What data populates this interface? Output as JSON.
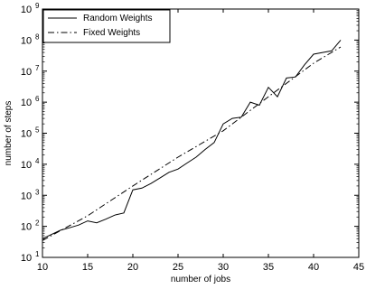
{
  "chart_data": {
    "type": "line",
    "xlabel": "number of jobs",
    "ylabel": "number of steps",
    "xlim": [
      10,
      45
    ],
    "ylim_log10": [
      1,
      9
    ],
    "y_scale": "log",
    "x_ticks": [
      10,
      15,
      20,
      25,
      30,
      35,
      40,
      45
    ],
    "y_tick_base": "10",
    "y_tick_exponents": [
      "1",
      "2",
      "3",
      "4",
      "5",
      "6",
      "7",
      "8",
      "9"
    ],
    "legend_position": "top-left",
    "series": [
      {
        "name": "Random Weights",
        "style": "solid",
        "x": [
          10,
          11,
          12,
          13,
          14,
          15,
          16,
          17,
          18,
          19,
          20,
          21,
          22,
          23,
          24,
          25,
          26,
          27,
          28,
          29,
          30,
          31,
          32,
          33,
          34,
          35,
          36,
          37,
          38,
          39,
          40,
          41,
          42,
          43
        ],
        "y": [
          40,
          55,
          75,
          90,
          110,
          150,
          130,
          170,
          230,
          270,
          1500,
          1700,
          2400,
          3600,
          5500,
          7000,
          11000,
          17000,
          30000,
          50000,
          200000,
          300000,
          330000,
          1000000,
          800000,
          3000000,
          1500000,
          6000000,
          6500000,
          16000000,
          35000000,
          40000000,
          45000000,
          100000000
        ]
      },
      {
        "name": "Fixed Weights",
        "style": "dashdot",
        "x": [
          10,
          15,
          20,
          25,
          30,
          35,
          40,
          43
        ],
        "y": [
          35,
          220,
          2000,
          17000,
          120000,
          1500000,
          18000000,
          60000000
        ]
      }
    ]
  }
}
